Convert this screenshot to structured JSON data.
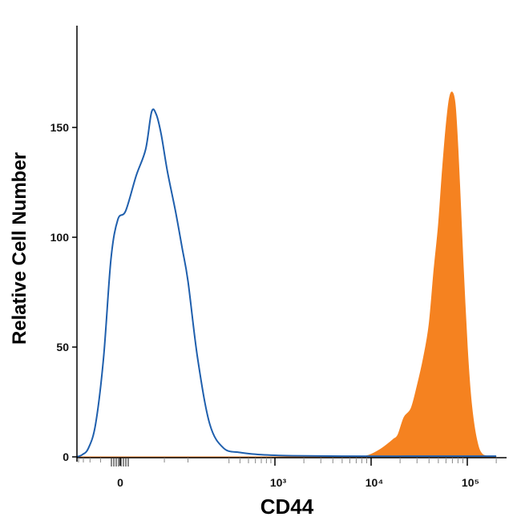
{
  "colors": {
    "isotype_series": "#1f5fad",
    "stained_series": "#f58220",
    "axis": "#000000",
    "minor_tick": "#888888"
  },
  "chart_data": {
    "type": "area",
    "title": "",
    "xlabel": "CD44",
    "ylabel": "Relative Cell Number",
    "x_scale": "biexponential",
    "x_tick_labels": [
      "0",
      "10³",
      "10⁴",
      "10⁵"
    ],
    "x_tick_values": [
      0,
      1000,
      10000,
      100000
    ],
    "ylim": [
      0,
      195
    ],
    "y_ticks": [
      0,
      50,
      100,
      150
    ],
    "y_tick_labels": [
      "0",
      "50",
      "100",
      "150"
    ],
    "grid": false,
    "legend": "none",
    "series": [
      {
        "style": "outline",
        "color": "#1f5fad",
        "x": [
          -220,
          -160,
          -110,
          -70,
          -40,
          -20,
          -5,
          5,
          15,
          25,
          32,
          38,
          45,
          55,
          70,
          85,
          100,
          130,
          180,
          260,
          400,
          700,
          1500,
          5000,
          30000,
          200000
        ],
        "y": [
          0,
          1,
          4,
          15,
          45,
          90,
          108,
          112,
          128,
          140,
          157,
          156,
          147,
          130,
          112,
          95,
          80,
          45,
          15,
          4,
          2,
          1,
          0.5,
          0.3,
          0.3,
          0.3
        ]
      },
      {
        "style": "filled",
        "color": "#f58220",
        "x": [
          -220,
          6000,
          9000,
          12000,
          15000,
          17000,
          19000,
          22000,
          26000,
          30000,
          35000,
          40000,
          45000,
          50000,
          55000,
          60000,
          65000,
          70000,
          75000,
          80000,
          85000,
          90000,
          100000,
          110000,
          125000,
          145000,
          200000
        ],
        "y": [
          0,
          0,
          0.5,
          3,
          6,
          8,
          10,
          18,
          22,
          32,
          45,
          60,
          85,
          105,
          130,
          150,
          163,
          166,
          160,
          140,
          115,
          90,
          50,
          25,
          8,
          1,
          0
        ]
      }
    ]
  }
}
